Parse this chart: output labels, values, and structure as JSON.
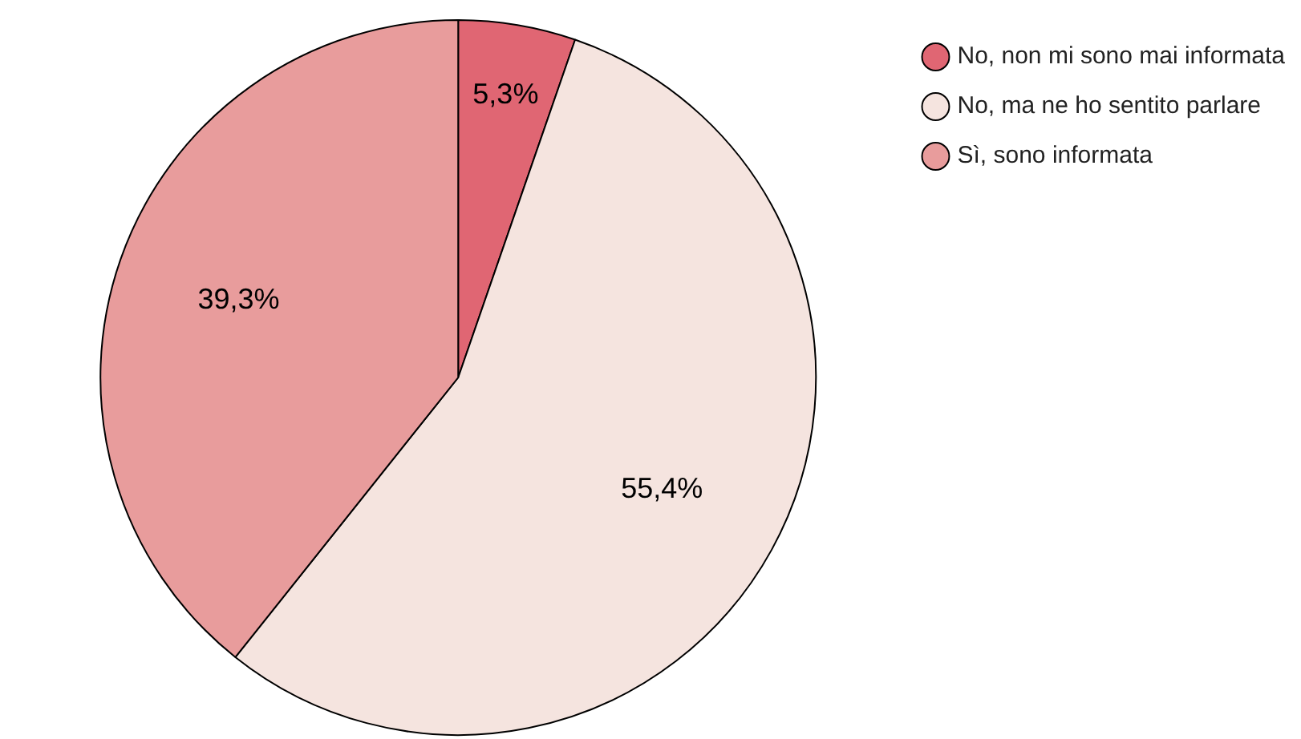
{
  "chart_data": {
    "type": "pie",
    "categories": [
      "No, non mi sono mai informata",
      "No, ma ne ho sentito parlare",
      "Sì, sono informata"
    ],
    "values": [
      5.3,
      55.4,
      39.3
    ],
    "value_labels": [
      "5,3%",
      "55,4%",
      "39,3%"
    ],
    "colors": [
      "#e06673",
      "#f5e4df",
      "#e89c9c"
    ],
    "legend": "top right"
  }
}
